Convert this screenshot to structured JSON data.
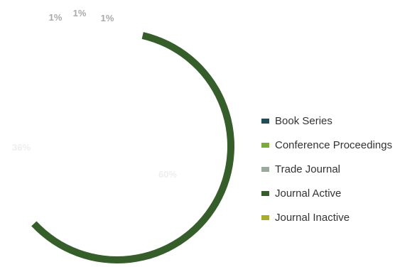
{
  "chart_data": {
    "type": "pie",
    "title": "",
    "slices": [
      {
        "label": "Book Series",
        "value": 1,
        "display": "1%",
        "color": "#1f4e5a"
      },
      {
        "label": "Conference Proceedings",
        "value": 1,
        "display": "1%",
        "color": "#7aab3c"
      },
      {
        "label": "Trade Journal",
        "value": 1,
        "display": "1%",
        "color": "#9bab9b"
      },
      {
        "label": "Journal Active",
        "value": 60,
        "display": "60%",
        "color": "#355e2a"
      },
      {
        "label": "Journal Inactive",
        "value": 36,
        "display": "36%",
        "color": "#a8ad2b"
      }
    ],
    "legend_position": "right",
    "label_color": "#aaaaaa"
  }
}
